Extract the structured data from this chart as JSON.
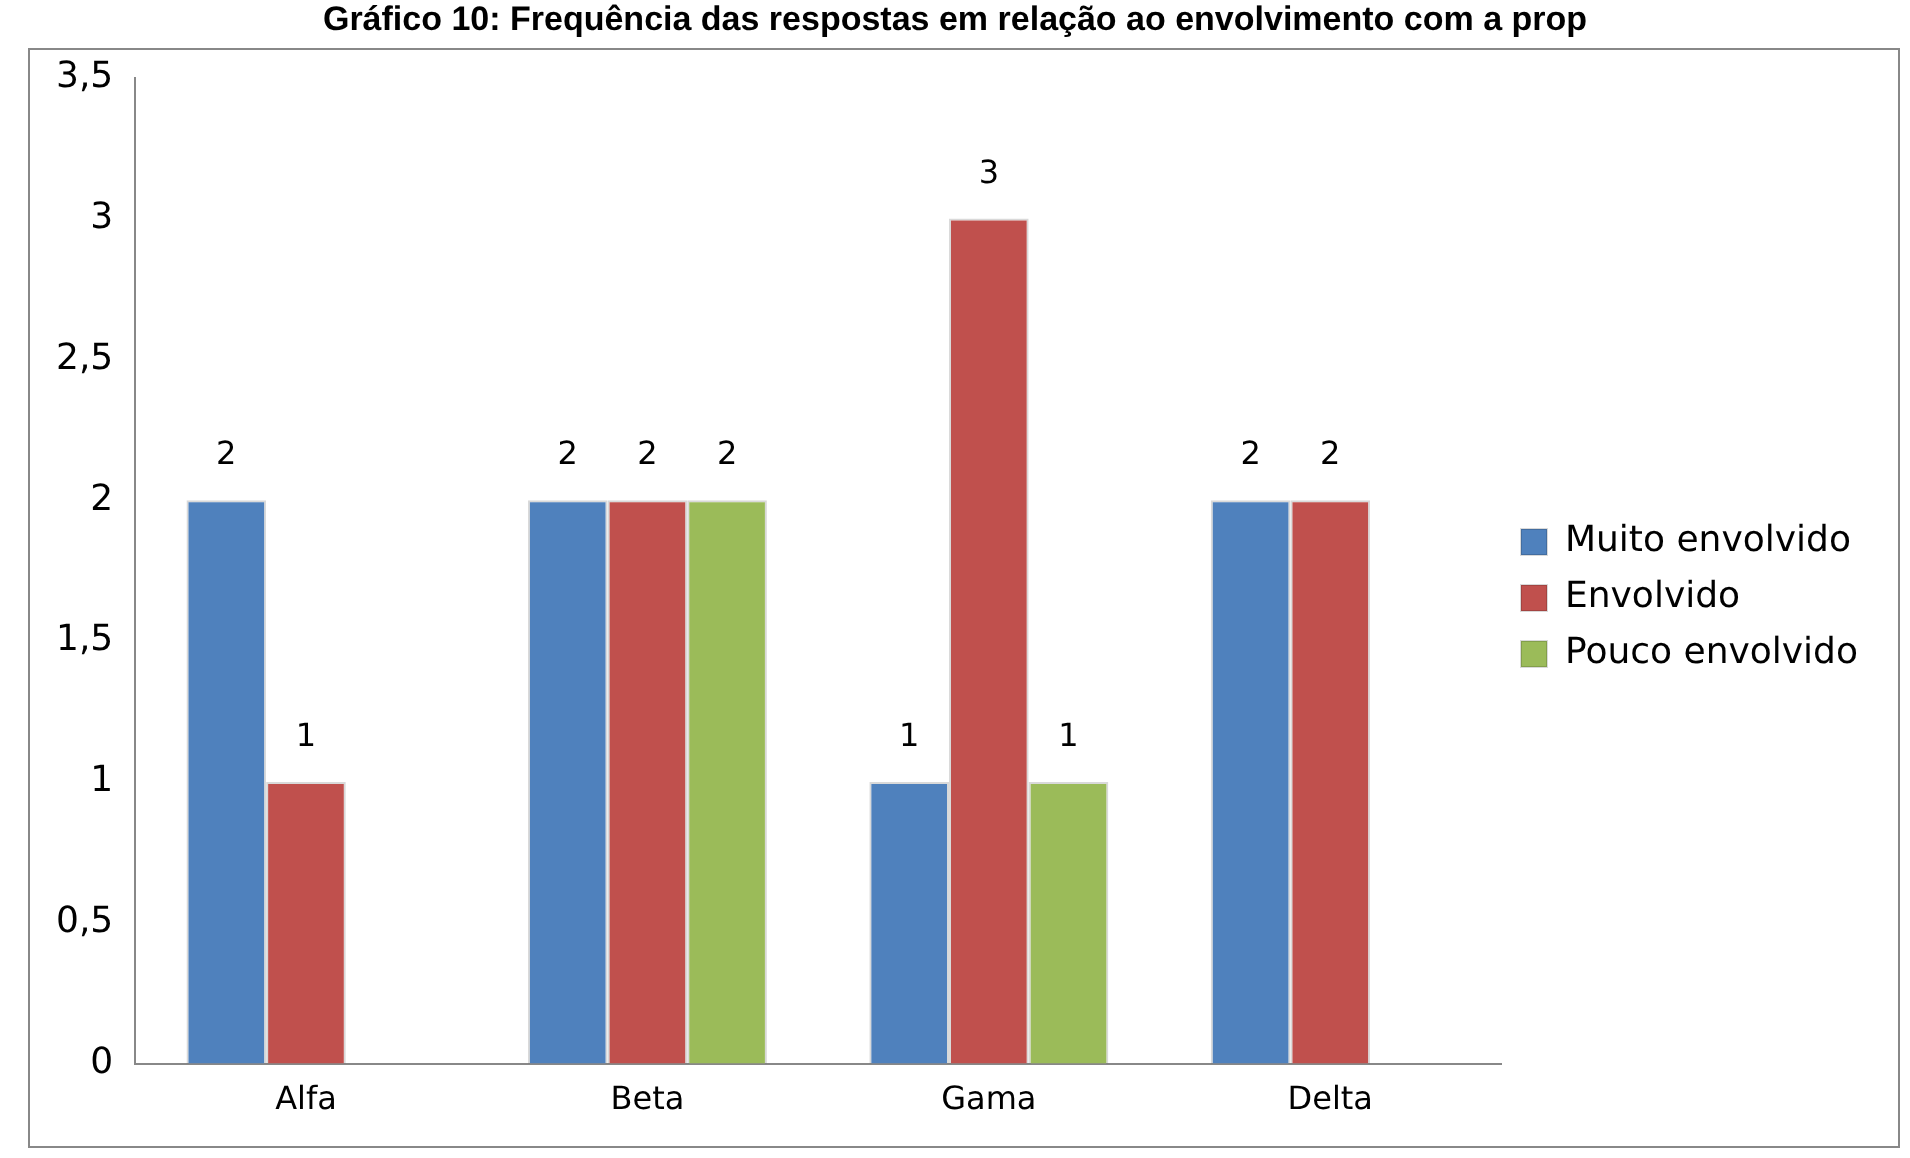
{
  "chart_data": {
    "type": "bar",
    "title": "Gráfico 10: Frequência das respostas em relação ao envolvimento com a prop",
    "categories": [
      "Alfa",
      "Beta",
      "Gama",
      "Delta"
    ],
    "series": [
      {
        "name": "Muito envolvido",
        "color": "#4f81bd",
        "values": [
          2,
          2,
          1,
          2
        ]
      },
      {
        "name": "Envolvido",
        "color": "#c0504d",
        "values": [
          1,
          2,
          3,
          2
        ]
      },
      {
        "name": "Pouco envolvido",
        "color": "#9bbb59",
        "values": [
          null,
          2,
          1,
          null
        ]
      }
    ],
    "ylim": [
      0,
      3.5
    ],
    "yticks": [
      0,
      {
        "value": 0.5,
        "label": "0,5"
      },
      1,
      {
        "value": 1.5,
        "label": "1,5"
      },
      2,
      {
        "value": 2.5,
        "label": "2,5"
      },
      3,
      {
        "value": 3.5,
        "label": "3,5"
      }
    ],
    "grid": false,
    "legend": "right",
    "data_labels": true
  }
}
